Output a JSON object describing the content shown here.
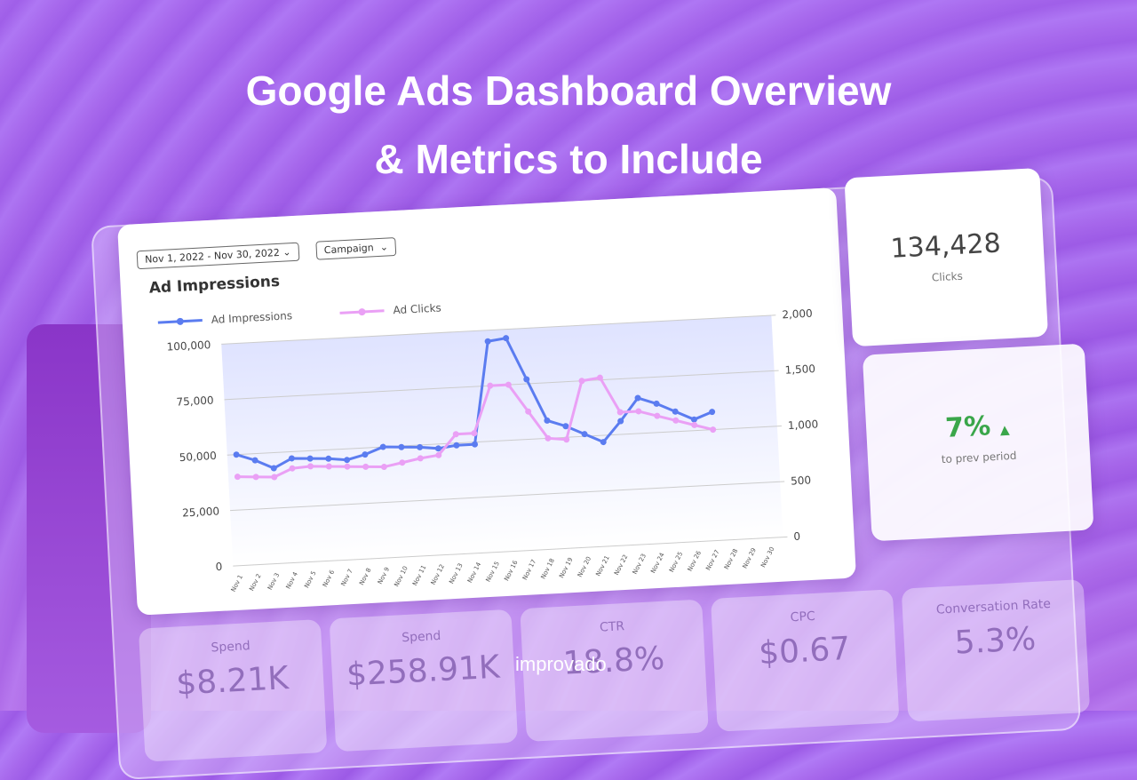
{
  "header": {
    "title_line1": "Google Ads Dashboard Overview",
    "title_line2": "& Metrics to Include"
  },
  "filters": {
    "date_range": "Nov 1, 2022 - Nov 30, 2022",
    "campaign": "Campaign"
  },
  "chart_data": {
    "type": "line",
    "title": "Ad Impressions",
    "categories": [
      "Nov 1",
      "Nov 2",
      "Nov 3",
      "Nov 4",
      "Nov 5",
      "Nov 6",
      "Nov 7",
      "Nov 8",
      "Nov 9",
      "Nov 10",
      "Nov 11",
      "Nov 12",
      "Nov 13",
      "Nov 14",
      "Nov 15",
      "Nov 16",
      "Nov 17",
      "Nov 18",
      "Nov 19",
      "Nov 20",
      "Nov 21",
      "Nov 22",
      "Nov 23",
      "Nov 24",
      "Nov 25",
      "Nov 26",
      "Nov 27",
      "Nov 28",
      "Nov 29",
      "Nov 30"
    ],
    "series": [
      {
        "name": "Ad Impressions",
        "color": "#5b7cf0",
        "axis": "y",
        "values": [
          50000,
          47000,
          43000,
          47000,
          46500,
          46000,
          45000,
          47000,
          50000,
          49500,
          49000,
          48000,
          49000,
          49000,
          95000,
          96000,
          77000,
          58000,
          55000,
          51000,
          47000,
          56000,
          66000,
          63000,
          59000,
          55000,
          58000,
          null,
          null,
          null
        ]
      },
      {
        "name": "Ad Clicks",
        "color": "#eaa0f5",
        "axis": "y2",
        "values": [
          800,
          790,
          780,
          850,
          860,
          850,
          840,
          830,
          820,
          850,
          880,
          900,
          1080,
          1080,
          1500,
          1500,
          1250,
          1000,
          980,
          1500,
          1520,
          1200,
          1200,
          1150,
          1100,
          1050,
          1000,
          null,
          null,
          null
        ]
      }
    ],
    "ylim": [
      0,
      100000
    ],
    "yticks": [
      0,
      {
        "value": 25000,
        "label": "25,000"
      },
      {
        "value": 50000,
        "label": "50,000"
      },
      {
        "value": 75000,
        "label": "75,000"
      },
      {
        "value": 100000,
        "label": "100,000"
      }
    ],
    "y2lim": [
      0,
      2000
    ],
    "y2ticks": [
      0,
      500,
      {
        "value": 1000,
        "label": "1,000"
      },
      {
        "value": 1500,
        "label": "1,500"
      },
      {
        "value": 2000,
        "label": "2,000"
      }
    ],
    "grid": true
  },
  "kpis": {
    "clicks_value": "134,428",
    "clicks_label": "Clicks",
    "change_value": "7%",
    "change_label": "to prev period"
  },
  "bottom_cards": [
    {
      "label": "Spend",
      "value": "$8.21K"
    },
    {
      "label": "Spend",
      "value": "$258.91K"
    },
    {
      "label": "CTR",
      "value": "18.8%"
    },
    {
      "label": "CPC",
      "value": "$0.67"
    },
    {
      "label": "Conversation Rate",
      "value": "5.3%"
    }
  ],
  "brand": "improvado"
}
